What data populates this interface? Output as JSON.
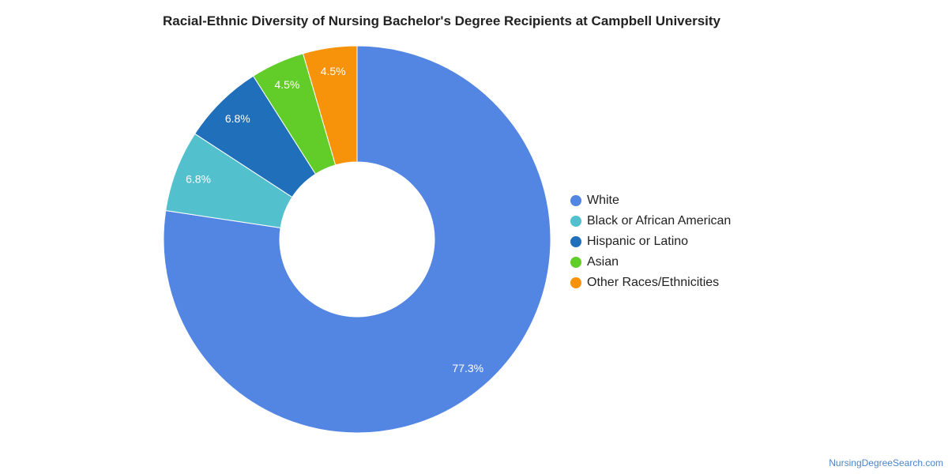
{
  "chart_data": {
    "type": "pie",
    "title": "Racial-Ethnic Diversity of Nursing Bachelor's Degree Recipients at Campbell University",
    "donut": true,
    "legend_position": "right",
    "slices": [
      {
        "name": "White",
        "value": 77.3,
        "label": "77.3%",
        "color": "#5385e3"
      },
      {
        "name": "Black or African American",
        "value": 6.8,
        "label": "6.8%",
        "color": "#52c0cd"
      },
      {
        "name": "Hispanic or Latino",
        "value": 6.8,
        "label": "6.8%",
        "color": "#1f6fba"
      },
      {
        "name": "Asian",
        "value": 4.5,
        "label": "4.5%",
        "color": "#62cd29"
      },
      {
        "name": "Other Races/Ethnicities",
        "value": 4.5,
        "label": "4.5%",
        "color": "#f7930b"
      }
    ]
  },
  "credit": "NursingDegreeSearch.com"
}
